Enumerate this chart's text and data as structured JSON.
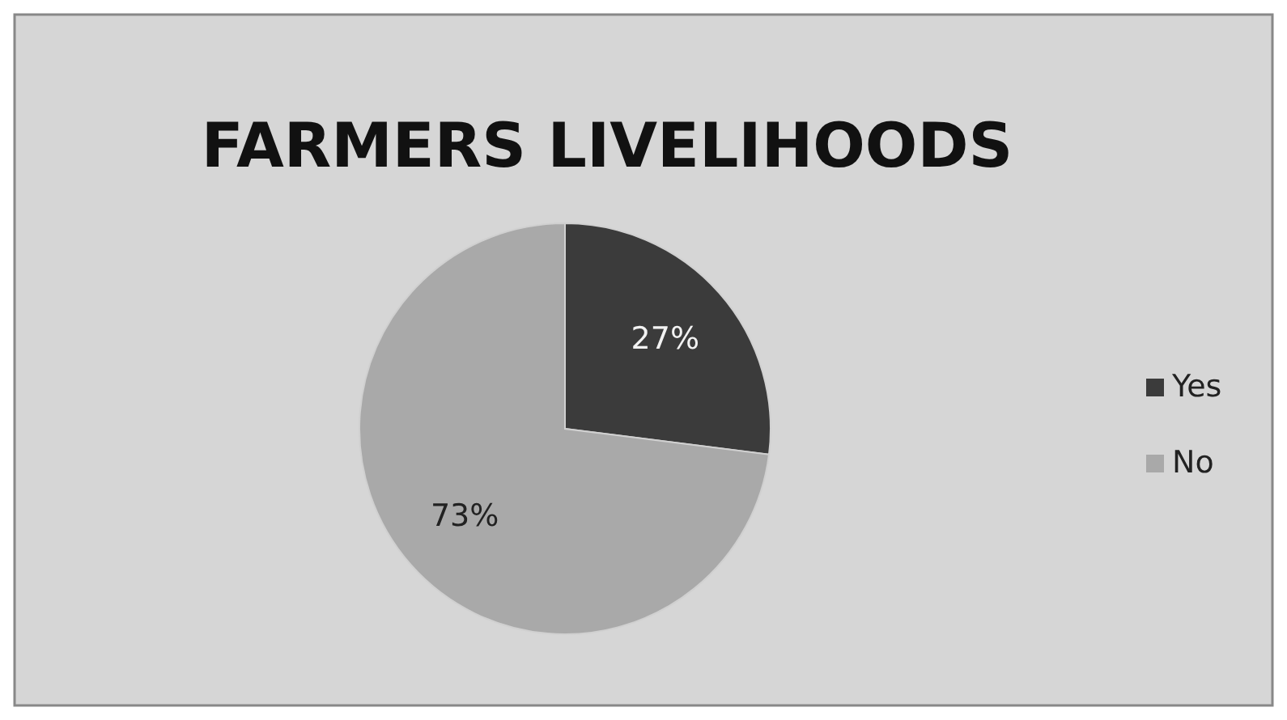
{
  "chart_data": {
    "type": "pie",
    "title": "FARMERS LIVELIHOODS",
    "categories": [
      "Yes",
      "No"
    ],
    "values": [
      27,
      73
    ],
    "colors": [
      "#3b3b3b",
      "#a9a9a9"
    ],
    "value_labels": [
      "27%",
      "73%"
    ],
    "legend": "right"
  }
}
